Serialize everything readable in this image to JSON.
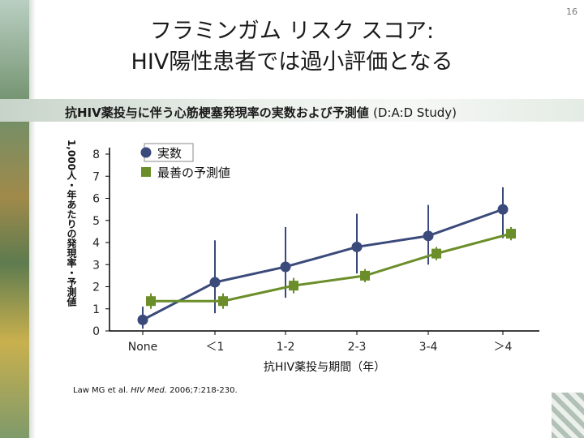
{
  "slide_number": "16",
  "title_line1": "フラミンガム リスク スコア:",
  "title_line2": "HIV陽性患者では過小評価となる",
  "subtitle_main": "抗HIV薬投与に伴う心筋梗塞発現率の実数および予測値",
  "subtitle_study": "(D:A:D Study)",
  "citation": {
    "prefix": "Law MG et al.",
    "journal": "HIV Med.",
    "suffix": "2006;7:218-230."
  },
  "colors": {
    "observed": "#3a4a7a",
    "predicted": "#6b8e2a"
  },
  "chart_data": {
    "type": "line",
    "ylabel": "1,000人・年あたりの発現率・予測値",
    "xlabel": "抗HIV薬投与期間（年）",
    "categories": [
      "None",
      "＜1",
      "1-2",
      "2-3",
      "3-4",
      "＞4"
    ],
    "ylim": [
      0,
      8
    ],
    "yticks": [
      0,
      1,
      2,
      3,
      4,
      5,
      6,
      7,
      8
    ],
    "legend": "top-left",
    "series": [
      {
        "name": "実数",
        "marker": "circle",
        "values": [
          0.5,
          2.2,
          2.9,
          3.8,
          4.3,
          5.5
        ],
        "err_low": [
          0.1,
          0.8,
          1.5,
          2.6,
          3.0,
          4.2
        ],
        "err_high": [
          1.1,
          4.1,
          4.7,
          5.3,
          5.7,
          6.5
        ]
      },
      {
        "name": "最善の予測値",
        "marker": "square",
        "values": [
          1.35,
          1.35,
          2.05,
          2.5,
          3.5,
          4.4
        ],
        "err_low": [
          1.0,
          1.0,
          1.7,
          2.2,
          3.2,
          4.1
        ],
        "err_high": [
          1.7,
          1.7,
          2.4,
          2.8,
          3.8,
          4.7
        ]
      }
    ]
  }
}
